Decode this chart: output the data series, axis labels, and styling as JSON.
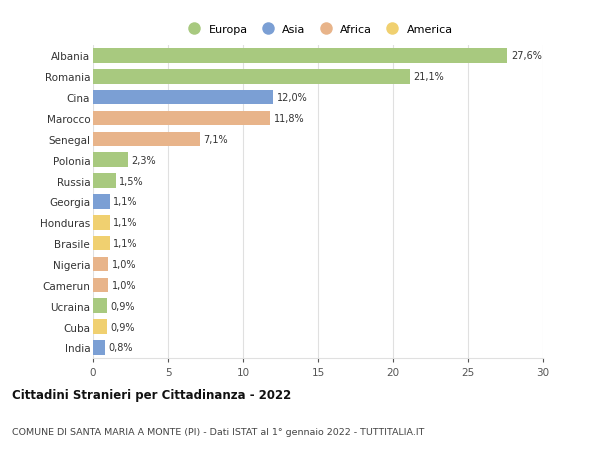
{
  "countries": [
    "Albania",
    "Romania",
    "Cina",
    "Marocco",
    "Senegal",
    "Polonia",
    "Russia",
    "Georgia",
    "Honduras",
    "Brasile",
    "Nigeria",
    "Camerun",
    "Ucraina",
    "Cuba",
    "India"
  ],
  "values": [
    27.6,
    21.1,
    12.0,
    11.8,
    7.1,
    2.3,
    1.5,
    1.1,
    1.1,
    1.1,
    1.0,
    1.0,
    0.9,
    0.9,
    0.8
  ],
  "labels": [
    "27,6%",
    "21,1%",
    "12,0%",
    "11,8%",
    "7,1%",
    "2,3%",
    "1,5%",
    "1,1%",
    "1,1%",
    "1,1%",
    "1,0%",
    "1,0%",
    "0,9%",
    "0,9%",
    "0,8%"
  ],
  "continents": [
    "Europa",
    "Europa",
    "Asia",
    "Africa",
    "Africa",
    "Europa",
    "Europa",
    "Asia",
    "America",
    "America",
    "Africa",
    "Africa",
    "Europa",
    "America",
    "Asia"
  ],
  "colors": {
    "Europa": "#a8c97f",
    "Asia": "#7b9fd4",
    "Africa": "#e8b48a",
    "America": "#f0d070"
  },
  "legend_order": [
    "Europa",
    "Asia",
    "Africa",
    "America"
  ],
  "xlim": [
    0,
    30
  ],
  "xticks": [
    0,
    5,
    10,
    15,
    20,
    25,
    30
  ],
  "title": "Cittadini Stranieri per Cittadinanza - 2022",
  "subtitle": "COMUNE DI SANTA MARIA A MONTE (PI) - Dati ISTAT al 1° gennaio 2022 - TUTTITALIA.IT",
  "bg_color": "#ffffff",
  "grid_color": "#e0e0e0",
  "bar_height": 0.7
}
